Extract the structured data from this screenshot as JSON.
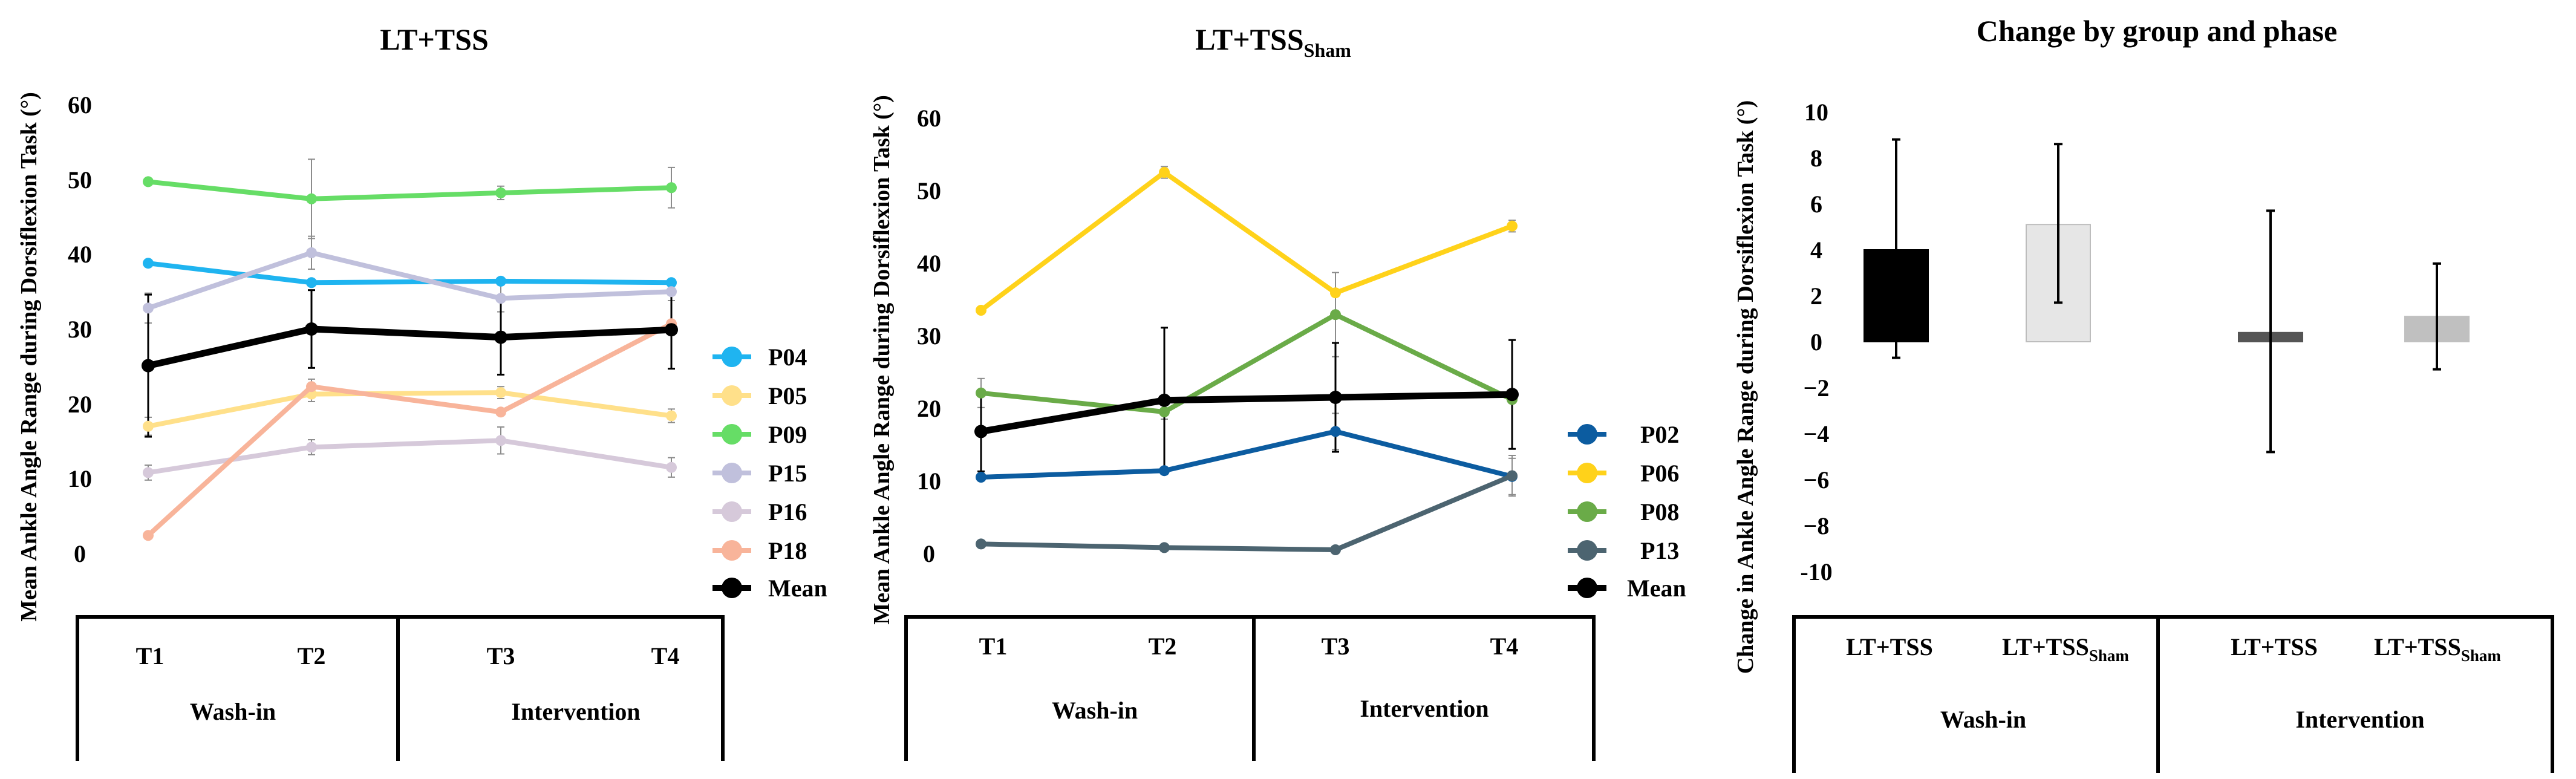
{
  "chart_data": [
    {
      "type": "line",
      "title": "LT+TSS",
      "ylabel": "Mean Ankle Angle Range during Dorsiflexion Task (°)",
      "ylim": [
        0,
        60
      ],
      "yticks": [
        "0",
        "10",
        "20",
        "30",
        "40",
        "50",
        "60"
      ],
      "categories": [
        "T1",
        "T2",
        "T3",
        "T4"
      ],
      "groups": [
        {
          "label": "Wash-in"
        },
        {
          "label": "Intervention"
        }
      ],
      "series": [
        {
          "name": "P04",
          "color": "#1fb4f0",
          "values": [
            38.8,
            36.2,
            36.4,
            36.2
          ],
          "errors": [
            null,
            null,
            null,
            null
          ]
        },
        {
          "name": "P05",
          "color": "#ffe08a",
          "values": [
            17,
            21.3,
            21.5,
            18.4
          ],
          "errors": [
            1.2,
            1.0,
            0.8,
            0.9
          ]
        },
        {
          "name": "P09",
          "color": "#66dd66",
          "values": [
            49.7,
            47.4,
            48.2,
            48.9
          ],
          "errors": [
            null,
            5.3,
            0.9,
            2.7
          ]
        },
        {
          "name": "P15",
          "color": "#c0c0dc",
          "values": [
            32.8,
            40.2,
            34.1,
            35.0
          ],
          "errors": [
            2.0,
            2.2,
            1.8,
            1.2
          ]
        },
        {
          "name": "P16",
          "color": "#d6c9da",
          "values": [
            10.8,
            14.2,
            15.1,
            11.5
          ],
          "errors": [
            1.0,
            1.0,
            1.8,
            1.3
          ]
        },
        {
          "name": "P18",
          "color": "#f8b49a",
          "values": [
            2.4,
            22.3,
            18.9,
            30.7
          ],
          "errors": [
            null,
            1.0,
            null,
            null
          ]
        },
        {
          "name": "Mean",
          "color": "#000000",
          "values": [
            25.1,
            30.0,
            28.9,
            29.9
          ],
          "errors": [
            9.5,
            5.2,
            5.0,
            5.2
          ],
          "bold": true
        }
      ]
    },
    {
      "type": "line",
      "title": "LT+TSS",
      "title_sub": "Sham",
      "ylabel": "Mean Ankle Angle Range during Dorsiflexion Task (°)",
      "ylim": [
        0,
        60
      ],
      "yticks": [
        "0",
        "10",
        "20",
        "30",
        "40",
        "50",
        "60"
      ],
      "categories": [
        "T1",
        "T2",
        "T3",
        "T4"
      ],
      "groups": [
        {
          "label": "Wash-in"
        },
        {
          "label": "Intervention"
        }
      ],
      "series": [
        {
          "name": "P02",
          "color": "#0c5ca0",
          "values": [
            10.5,
            11.4,
            16.8,
            10.6
          ],
          "errors": [
            null,
            null,
            2.5,
            2.5
          ]
        },
        {
          "name": "P06",
          "color": "#ffd21a",
          "values": [
            33.5,
            52.5,
            35.9,
            45.1
          ],
          "errors": [
            null,
            0.8,
            null,
            0.8
          ]
        },
        {
          "name": "P08",
          "color": "#6aab48",
          "values": [
            22.1,
            19.5,
            32.9,
            21.2
          ],
          "errors": [
            2.0,
            1.0,
            5.8,
            null
          ]
        },
        {
          "name": "P13",
          "color": "#4c6470",
          "values": [
            1.3,
            0.8,
            0.5,
            10.7
          ],
          "errors": [
            null,
            null,
            null,
            2.8
          ]
        },
        {
          "name": "Mean",
          "color": "#000000",
          "values": [
            16.8,
            21.1,
            21.5,
            21.9
          ],
          "errors": [
            5.5,
            10.0,
            7.5,
            7.5
          ],
          "bold": true
        }
      ]
    },
    {
      "type": "bar",
      "title": "Change by group and phase",
      "ylabel": "Change in Ankle Angle Range during Dorsiflexion Task (°)",
      "ylim": [
        -10,
        10
      ],
      "yticks": [
        "-10",
        "−8",
        "−6",
        "−4",
        "−2",
        "0",
        "2",
        "4",
        "6",
        "8",
        "10"
      ],
      "categories": [
        {
          "label": "LT+TSS",
          "sub": ""
        },
        {
          "label": "LT+TSS",
          "sub": "Sham"
        },
        {
          "label": "LT+TSS",
          "sub": ""
        },
        {
          "label": "LT+TSS",
          "sub": "Sham"
        }
      ],
      "groups": [
        {
          "label": "Wash-in"
        },
        {
          "label": "Intervention"
        }
      ],
      "values": [
        4.0,
        5.1,
        0.4,
        1.1
      ],
      "err_low": [
        -0.7,
        1.7,
        -4.8,
        -1.2
      ],
      "err_high": [
        8.8,
        8.6,
        5.7,
        3.4
      ],
      "colors": [
        "#000000",
        "#e6e6e6",
        "#555555",
        "#c0c0c0"
      ],
      "edge_colors": [
        "#000000",
        "#bdbdbd",
        "#555555",
        "#c0c0c0"
      ]
    }
  ]
}
